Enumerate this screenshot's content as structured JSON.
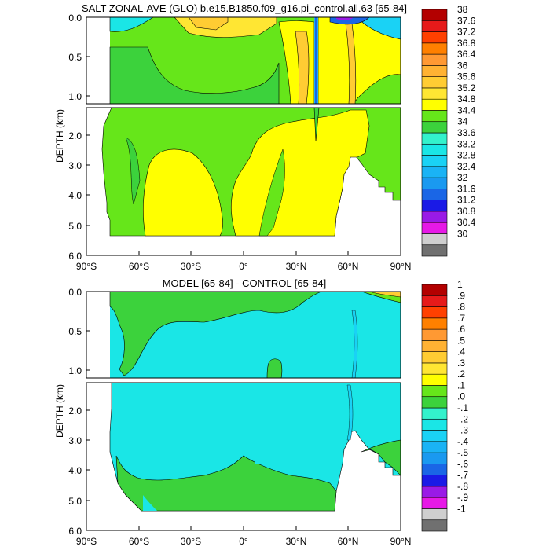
{
  "colors": {
    "sal": [
      "#707070",
      "#cfcfcf",
      "#e619e6",
      "#9a1ae6",
      "#1a1ae6",
      "#1a66e6",
      "#1a99f0",
      "#1ab3f5",
      "#1ad2f5",
      "#1ae6e6",
      "#33f2cc",
      "#3cd23c",
      "#66e61a",
      "#ffff00",
      "#ffe633",
      "#ffcc33",
      "#ffb233",
      "#ff9933",
      "#ff8000",
      "#ff4000",
      "#e61a1a",
      "#b30000"
    ],
    "diff": [
      "#707070",
      "#cfcfcf",
      "#e619e6",
      "#9a1ae6",
      "#1a1ae6",
      "#1a66e6",
      "#1a99f0",
      "#1ab3f5",
      "#1ad2f5",
      "#1ae6e6",
      "#33f2cc",
      "#3cd23c",
      "#66e61a",
      "#ffff00",
      "#ffe633",
      "#ffcc33",
      "#ffb233",
      "#ff9933",
      "#ff8000",
      "#ff4000",
      "#e61a1a",
      "#b30000"
    ]
  },
  "chart_data": [
    {
      "type": "heatmap",
      "title": "SALT ZONAL-AVE (GLO) b.e15.B1850.f09_g16.pi_control.all.63 [65-84]",
      "ylabel": "DEPTH (km)",
      "x_ticks": [
        "90°S",
        "60°S",
        "30°S",
        "0°",
        "30°N",
        "60°N",
        "90°N"
      ],
      "y_ticks_top": [
        "0.0",
        "0.5",
        "1.0"
      ],
      "y_ticks_bottom": [
        "2.0",
        "3.0",
        "4.0",
        "5.0",
        "6.0"
      ],
      "xlim": [
        -90,
        90
      ],
      "ylim_top_km": [
        0,
        1.1
      ],
      "ylim_bottom_km": [
        1.1,
        6.0
      ],
      "colorbar_labels": [
        "38",
        "37.6",
        "37.2",
        "36.8",
        "36.4",
        "36",
        "35.6",
        "35.2",
        "34.8",
        "34.4",
        "34",
        "33.6",
        "33.2",
        "32.8",
        "32.4",
        "32",
        "31.6",
        "31.2",
        "30.8",
        "30.4",
        "30"
      ],
      "regions_upper": [
        {
          "lat": [
            -78,
            90
          ],
          "value": 34.6
        },
        {
          "lat": [
            -40,
            15
          ],
          "value": 34.3
        },
        {
          "lat": [
            30,
            45
          ],
          "value": 35.8
        },
        {
          "lat": [
            45,
            60
          ],
          "value": 35.2
        },
        {
          "lat": [
            60,
            90
          ],
          "value": 35.0
        },
        {
          "lat": [
            41,
            44
          ],
          "value": 33.2
        }
      ],
      "regions_lower": [
        {
          "lat": [
            -78,
            90
          ],
          "value": 34.7
        },
        {
          "lat": [
            -45,
            -15
          ],
          "value": 34.9
        },
        {
          "lat": [
            15,
            60
          ],
          "value": 35.0
        },
        {
          "lat": [
            42,
            44
          ],
          "value": 34.4
        }
      ]
    },
    {
      "type": "heatmap",
      "title": "MODEL [65-84] - CONTROL [65-84]",
      "ylabel": "DEPTH (km)",
      "x_ticks": [
        "90°S",
        "60°S",
        "30°S",
        "0°",
        "30°N",
        "60°N",
        "90°N"
      ],
      "y_ticks_top": [
        "0.0",
        "0.5",
        "1.0"
      ],
      "y_ticks_bottom": [
        "2.0",
        "3.0",
        "4.0",
        "5.0",
        "6.0"
      ],
      "xlim": [
        -90,
        90
      ],
      "ylim_top_km": [
        0,
        1.1
      ],
      "ylim_bottom_km": [
        1.1,
        6.0
      ],
      "colorbar_labels": [
        "1",
        ".9",
        ".8",
        ".7",
        ".6",
        ".5",
        ".4",
        ".3",
        ".2",
        ".1",
        ".0",
        "-.1",
        "-.2",
        "-.3",
        "-.4",
        "-.5",
        "-.6",
        "-.7",
        "-.8",
        "-.9",
        "-1"
      ],
      "regions_upper": [
        {
          "lat": [
            -78,
            90
          ],
          "value": -0.05
        },
        {
          "lat": [
            -72,
            15
          ],
          "value": 0.05
        },
        {
          "lat": [
            60,
            62
          ],
          "value": -0.1
        }
      ],
      "regions_lower": [
        {
          "lat": [
            -78,
            90
          ],
          "value": -0.05
        },
        {
          "lat": [
            -72,
            50
          ],
          "value": 0.05
        }
      ]
    }
  ]
}
